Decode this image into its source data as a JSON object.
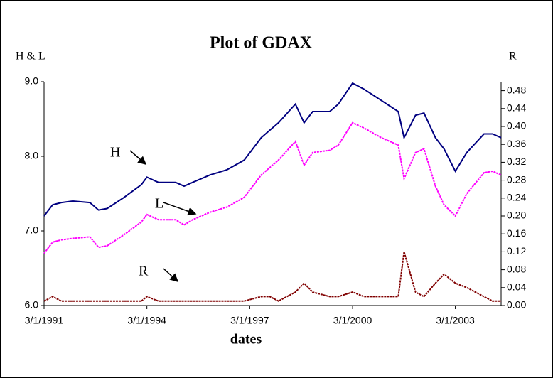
{
  "chart_data": {
    "type": "line",
    "title": "Plot of GDAX",
    "x_label": "dates",
    "y_label": "H & L",
    "y2_label": "R",
    "x": [
      "3/1/1991",
      "6/1/1991",
      "9/1/1991",
      "1/1/1992",
      "7/1/1992",
      "10/1/1992",
      "1/1/1993",
      "7/1/1993",
      "1/1/1994",
      "3/1/1994",
      "7/1/1994",
      "1/1/1995",
      "4/1/1995",
      "7/1/1995",
      "1/1/1996",
      "7/1/1996",
      "1/1/1997",
      "7/1/1997",
      "10/1/1997",
      "1/1/1998",
      "7/1/1998",
      "10/1/1998",
      "1/1/1999",
      "7/1/1999",
      "10/1/1999",
      "3/1/2000",
      "7/1/2000",
      "1/1/2001",
      "7/1/2001",
      "9/1/2001",
      "1/1/2002",
      "4/1/2002",
      "8/1/2002",
      "11/1/2002",
      "3/1/2003",
      "7/1/2003",
      "1/1/2004",
      "4/1/2004",
      "7/1/2004"
    ],
    "series": [
      {
        "name": "H",
        "color": "#000080",
        "values": [
          7.2,
          7.35,
          7.38,
          7.4,
          7.38,
          7.28,
          7.3,
          7.45,
          7.62,
          7.72,
          7.65,
          7.65,
          7.6,
          7.65,
          7.75,
          7.82,
          7.95,
          8.25,
          8.35,
          8.45,
          8.7,
          8.45,
          8.6,
          8.6,
          8.7,
          8.98,
          8.9,
          8.75,
          8.6,
          8.25,
          8.55,
          8.58,
          8.25,
          8.1,
          7.8,
          8.05,
          8.3,
          8.3,
          8.25
        ]
      },
      {
        "name": "L",
        "color": "#ff00ff",
        "values": [
          6.7,
          6.85,
          6.88,
          6.9,
          6.92,
          6.78,
          6.8,
          6.95,
          7.12,
          7.22,
          7.15,
          7.15,
          7.08,
          7.15,
          7.25,
          7.32,
          7.45,
          7.75,
          7.85,
          7.95,
          8.2,
          7.88,
          8.05,
          8.08,
          8.15,
          8.45,
          8.38,
          8.25,
          8.15,
          7.7,
          8.05,
          8.1,
          7.6,
          7.35,
          7.2,
          7.5,
          7.78,
          7.8,
          7.75
        ]
      },
      {
        "name": "R",
        "color": "#800000",
        "axis": "y2",
        "values": [
          0.01,
          0.02,
          0.01,
          0.01,
          0.01,
          0.01,
          0.01,
          0.01,
          0.01,
          0.02,
          0.01,
          0.01,
          0.01,
          0.01,
          0.01,
          0.01,
          0.01,
          0.02,
          0.02,
          0.01,
          0.03,
          0.05,
          0.03,
          0.02,
          0.02,
          0.03,
          0.02,
          0.02,
          0.02,
          0.12,
          0.03,
          0.02,
          0.05,
          0.07,
          0.05,
          0.04,
          0.02,
          0.01,
          0.01
        ]
      }
    ],
    "xlim": [
      "3/1/1991",
      "7/1/2004"
    ],
    "xticks": [
      "3/1/1991",
      "3/1/1994",
      "3/1/1997",
      "3/1/2000",
      "3/1/2003"
    ],
    "ylim": [
      6,
      9
    ],
    "yticks": [
      {
        "value": 6,
        "label": "6.0"
      },
      {
        "value": 7,
        "label": "7.0"
      },
      {
        "value": 8,
        "label": "8.0"
      },
      {
        "value": 9,
        "label": "9.0"
      }
    ],
    "y2lim": [
      0,
      0.5
    ],
    "y2ticks": [
      {
        "value": 0,
        "label": "0.00"
      },
      {
        "value": 0.04,
        "label": "0.04"
      },
      {
        "value": 0.08,
        "label": "0.08"
      },
      {
        "value": 0.12,
        "label": "0.12"
      },
      {
        "value": 0.16,
        "label": "0.16"
      },
      {
        "value": 0.2,
        "label": "0.20"
      },
      {
        "value": 0.24,
        "label": "0.24"
      },
      {
        "value": 0.28,
        "label": "0.28"
      },
      {
        "value": 0.32,
        "label": "0.32"
      },
      {
        "value": 0.36,
        "label": "0.36"
      },
      {
        "value": 0.4,
        "label": "0.40"
      },
      {
        "value": 0.44,
        "label": "0.44"
      },
      {
        "value": 0.48,
        "label": "0.48"
      }
    ]
  }
}
